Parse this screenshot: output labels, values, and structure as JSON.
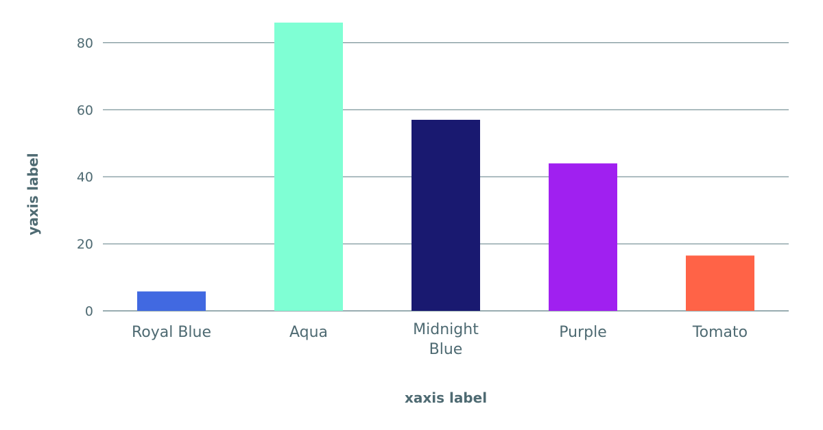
{
  "chart_data": {
    "type": "bar",
    "title": "",
    "xlabel": "xaxis label",
    "ylabel": "yaxis label",
    "categories": [
      "Royal Blue",
      "Aqua",
      "Midnight Blue",
      "Purple",
      "Tomato"
    ],
    "category_lines": [
      [
        "Royal Blue"
      ],
      [
        "Aqua"
      ],
      [
        "Midnight",
        "Blue"
      ],
      [
        "Purple"
      ],
      [
        "Tomato"
      ]
    ],
    "values": [
      5.8,
      86,
      57,
      44,
      16.5
    ],
    "colors": [
      "#4169E1",
      "#7FFFD4",
      "#191970",
      "#A020F0",
      "#FF6347"
    ],
    "yticks": [
      0,
      20,
      40,
      60,
      80
    ],
    "ylim": [
      0,
      86
    ],
    "grid": true,
    "legend": "none"
  }
}
